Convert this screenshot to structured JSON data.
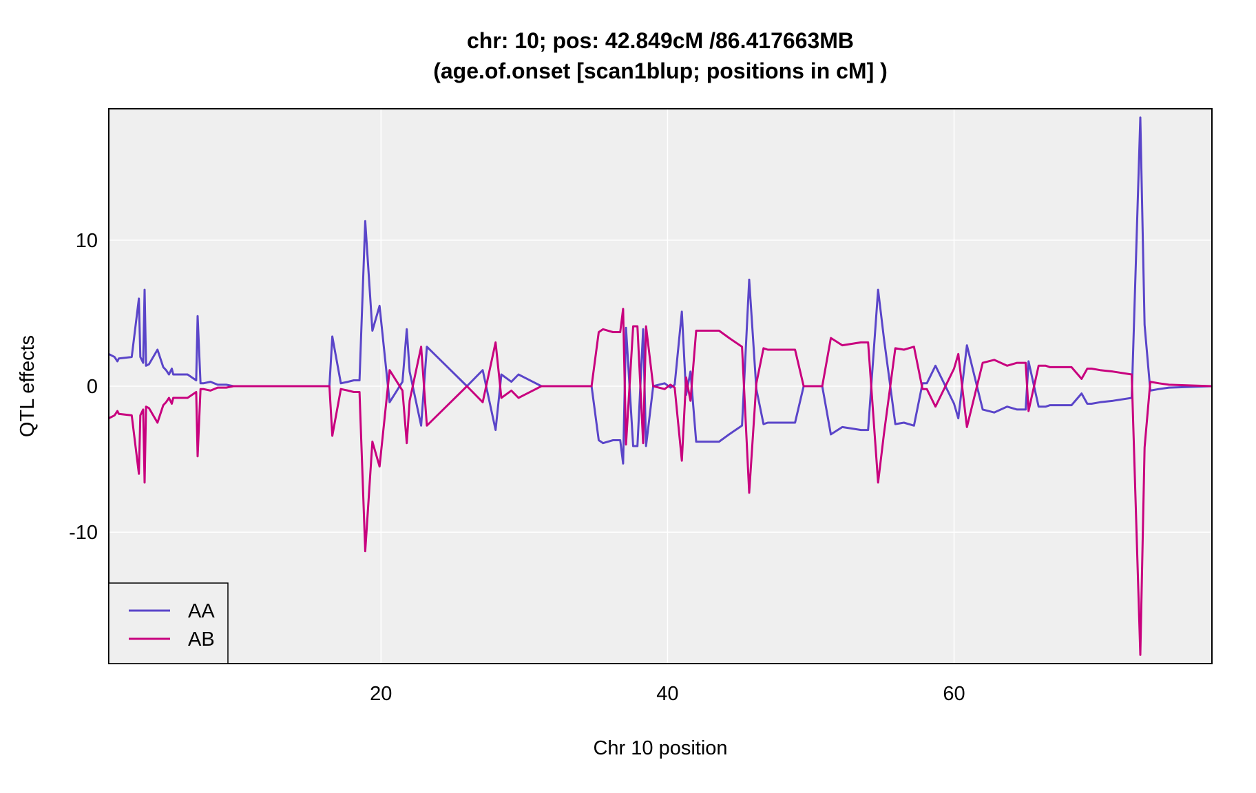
{
  "chart_data": {
    "type": "line",
    "title": "chr: 10; pos: 42.849cM /86.417663MB",
    "subtitle": "(age.of.onset [scan1blup; positions in cM] )",
    "xlabel": "Chr 10 position",
    "ylabel": "QTL effects",
    "xlim": [
      1,
      78
    ],
    "ylim": [
      -19,
      19
    ],
    "x_ticks": [
      20,
      40,
      60
    ],
    "y_ticks": [
      -10,
      0,
      10
    ],
    "x_tick_labels": [
      "20",
      "40",
      "60"
    ],
    "y_tick_labels": [
      "-10",
      "0",
      "10"
    ],
    "grid": true,
    "background": "#efefef",
    "legend_position": "bottom-left",
    "series": [
      {
        "name": "AA",
        "color": "#5a45c9",
        "x": [
          1.0,
          1.4,
          1.6,
          1.7,
          2.6,
          3.1,
          3.2,
          3.4,
          3.5,
          3.6,
          3.8,
          4.4,
          4.8,
          5.0,
          5.2,
          5.4,
          5.5,
          5.6,
          6.5,
          7.1,
          7.2,
          7.4,
          7.6,
          8.1,
          8.6,
          9.0,
          9.2,
          9.7,
          16.4,
          16.6,
          17.2,
          17.7,
          18.1,
          18.5,
          18.9,
          19.4,
          19.9,
          20.6,
          21.5,
          21.8,
          22.0,
          22.8,
          23.2,
          26.0,
          27.1,
          28.0,
          28.4,
          29.1,
          29.6,
          30.0,
          31.2,
          34.7,
          35.2,
          35.5,
          36.2,
          36.7,
          36.9,
          37.1,
          37.6,
          37.9,
          38.3,
          38.5,
          39.0,
          39.8,
          40.2,
          40.5,
          41.0,
          41.3,
          41.6,
          42.0,
          42.3,
          43.0,
          43.6,
          44.3,
          44.6,
          45.2,
          45.7,
          46.2,
          46.7,
          47.0,
          47.6,
          48.6,
          48.9,
          49.5,
          50.8,
          51.4,
          52.2,
          53.5,
          54.0,
          54.7,
          55.1,
          55.9,
          56.5,
          57.2,
          57.8,
          58.1,
          58.7,
          60.0,
          60.3,
          60.9,
          62.0,
          62.8,
          63.7,
          64.4,
          65.0,
          65.2,
          65.9,
          66.4,
          66.7,
          67.6,
          68.2,
          68.9,
          69.3,
          69.6,
          70.2,
          71.1,
          72.4,
          73.0,
          73.3,
          73.7,
          74.3,
          75.0,
          78.0
        ],
        "values": [
          2.2,
          2.0,
          1.7,
          1.9,
          2.0,
          6.0,
          2.0,
          1.6,
          6.6,
          1.4,
          1.5,
          2.5,
          1.3,
          1.1,
          0.8,
          1.2,
          0.8,
          0.8,
          0.8,
          0.4,
          4.8,
          0.2,
          0.2,
          0.3,
          0.1,
          0.1,
          0.1,
          0.0,
          0.0,
          3.4,
          0.2,
          0.3,
          0.4,
          0.4,
          11.3,
          3.8,
          5.5,
          -1.1,
          0.3,
          3.9,
          1.0,
          -2.7,
          2.7,
          0.0,
          1.1,
          -3.0,
          0.8,
          0.3,
          0.8,
          0.6,
          0.0,
          0.0,
          -3.7,
          -3.9,
          -3.7,
          -3.7,
          -5.3,
          4.0,
          -4.1,
          -4.1,
          3.9,
          -4.1,
          0.0,
          0.2,
          -0.1,
          0.1,
          5.1,
          -0.6,
          1.0,
          -3.8,
          -3.8,
          -3.8,
          -3.8,
          -3.3,
          -3.1,
          -2.7,
          7.3,
          -0.2,
          -2.6,
          -2.5,
          -2.5,
          -2.5,
          -2.5,
          0.0,
          0.0,
          -3.3,
          -2.8,
          -3.0,
          -3.0,
          6.6,
          3.3,
          -2.6,
          -2.5,
          -2.7,
          0.2,
          0.2,
          1.4,
          -1.2,
          -2.2,
          2.8,
          -1.6,
          -1.8,
          -1.4,
          -1.6,
          -1.6,
          1.7,
          -1.4,
          -1.4,
          -1.3,
          -1.3,
          -1.3,
          -0.5,
          -1.2,
          -1.2,
          -1.1,
          -1.0,
          -0.8,
          18.4,
          4.2,
          -0.3,
          -0.2,
          -0.1,
          0.0
        ]
      },
      {
        "name": "AB",
        "color": "#c8007e",
        "x": [
          1.0,
          1.4,
          1.6,
          1.7,
          2.6,
          3.1,
          3.2,
          3.4,
          3.5,
          3.6,
          3.8,
          4.4,
          4.8,
          5.0,
          5.2,
          5.4,
          5.5,
          5.6,
          6.5,
          7.1,
          7.2,
          7.4,
          7.6,
          8.1,
          8.6,
          9.0,
          9.2,
          9.7,
          16.4,
          16.6,
          17.2,
          17.7,
          18.1,
          18.5,
          18.9,
          19.4,
          19.9,
          20.6,
          21.5,
          21.8,
          22.0,
          22.8,
          23.2,
          26.0,
          27.1,
          28.0,
          28.4,
          29.1,
          29.6,
          30.0,
          31.2,
          34.7,
          35.2,
          35.5,
          36.2,
          36.7,
          36.9,
          37.1,
          37.6,
          37.9,
          38.3,
          38.5,
          39.0,
          39.8,
          40.2,
          40.5,
          41.0,
          41.3,
          41.6,
          42.0,
          42.3,
          43.0,
          43.6,
          44.3,
          44.6,
          45.2,
          45.7,
          46.2,
          46.7,
          47.0,
          47.6,
          48.6,
          48.9,
          49.5,
          50.8,
          51.4,
          52.2,
          53.5,
          54.0,
          54.7,
          55.1,
          55.9,
          56.5,
          57.2,
          57.8,
          58.1,
          58.7,
          60.0,
          60.3,
          60.9,
          62.0,
          62.8,
          63.7,
          64.4,
          65.0,
          65.2,
          65.9,
          66.4,
          66.7,
          67.6,
          68.2,
          68.9,
          69.3,
          69.6,
          70.2,
          71.1,
          72.4,
          73.0,
          73.3,
          73.7,
          74.3,
          75.0,
          78.0
        ],
        "values": [
          -2.2,
          -2.0,
          -1.7,
          -1.9,
          -2.0,
          -6.0,
          -2.0,
          -1.6,
          -6.6,
          -1.4,
          -1.5,
          -2.5,
          -1.3,
          -1.1,
          -0.8,
          -1.2,
          -0.8,
          -0.8,
          -0.8,
          -0.4,
          -4.8,
          -0.2,
          -0.2,
          -0.3,
          -0.1,
          -0.1,
          -0.1,
          0.0,
          0.0,
          -3.4,
          -0.2,
          -0.3,
          -0.4,
          -0.4,
          -11.3,
          -3.8,
          -5.5,
          1.1,
          -0.3,
          -3.9,
          -1.0,
          2.7,
          -2.7,
          0.0,
          -1.1,
          3.0,
          -0.8,
          -0.3,
          -0.8,
          -0.6,
          0.0,
          0.0,
          3.7,
          3.9,
          3.7,
          3.7,
          5.3,
          -4.0,
          4.1,
          4.1,
          -3.9,
          4.1,
          0.0,
          -0.2,
          0.1,
          -0.1,
          -5.1,
          0.6,
          -1.0,
          3.8,
          3.8,
          3.8,
          3.8,
          3.3,
          3.1,
          2.7,
          -7.3,
          0.2,
          2.6,
          2.5,
          2.5,
          2.5,
          2.5,
          0.0,
          0.0,
          3.3,
          2.8,
          3.0,
          3.0,
          -6.6,
          -3.3,
          2.6,
          2.5,
          2.7,
          -0.2,
          -0.2,
          -1.4,
          1.2,
          2.2,
          -2.8,
          1.6,
          1.8,
          1.4,
          1.6,
          1.6,
          -1.7,
          1.4,
          1.4,
          1.3,
          1.3,
          1.3,
          0.5,
          1.2,
          1.2,
          1.1,
          1.0,
          0.8,
          -18.4,
          -4.2,
          0.3,
          0.2,
          0.1,
          0.0
        ]
      }
    ]
  }
}
